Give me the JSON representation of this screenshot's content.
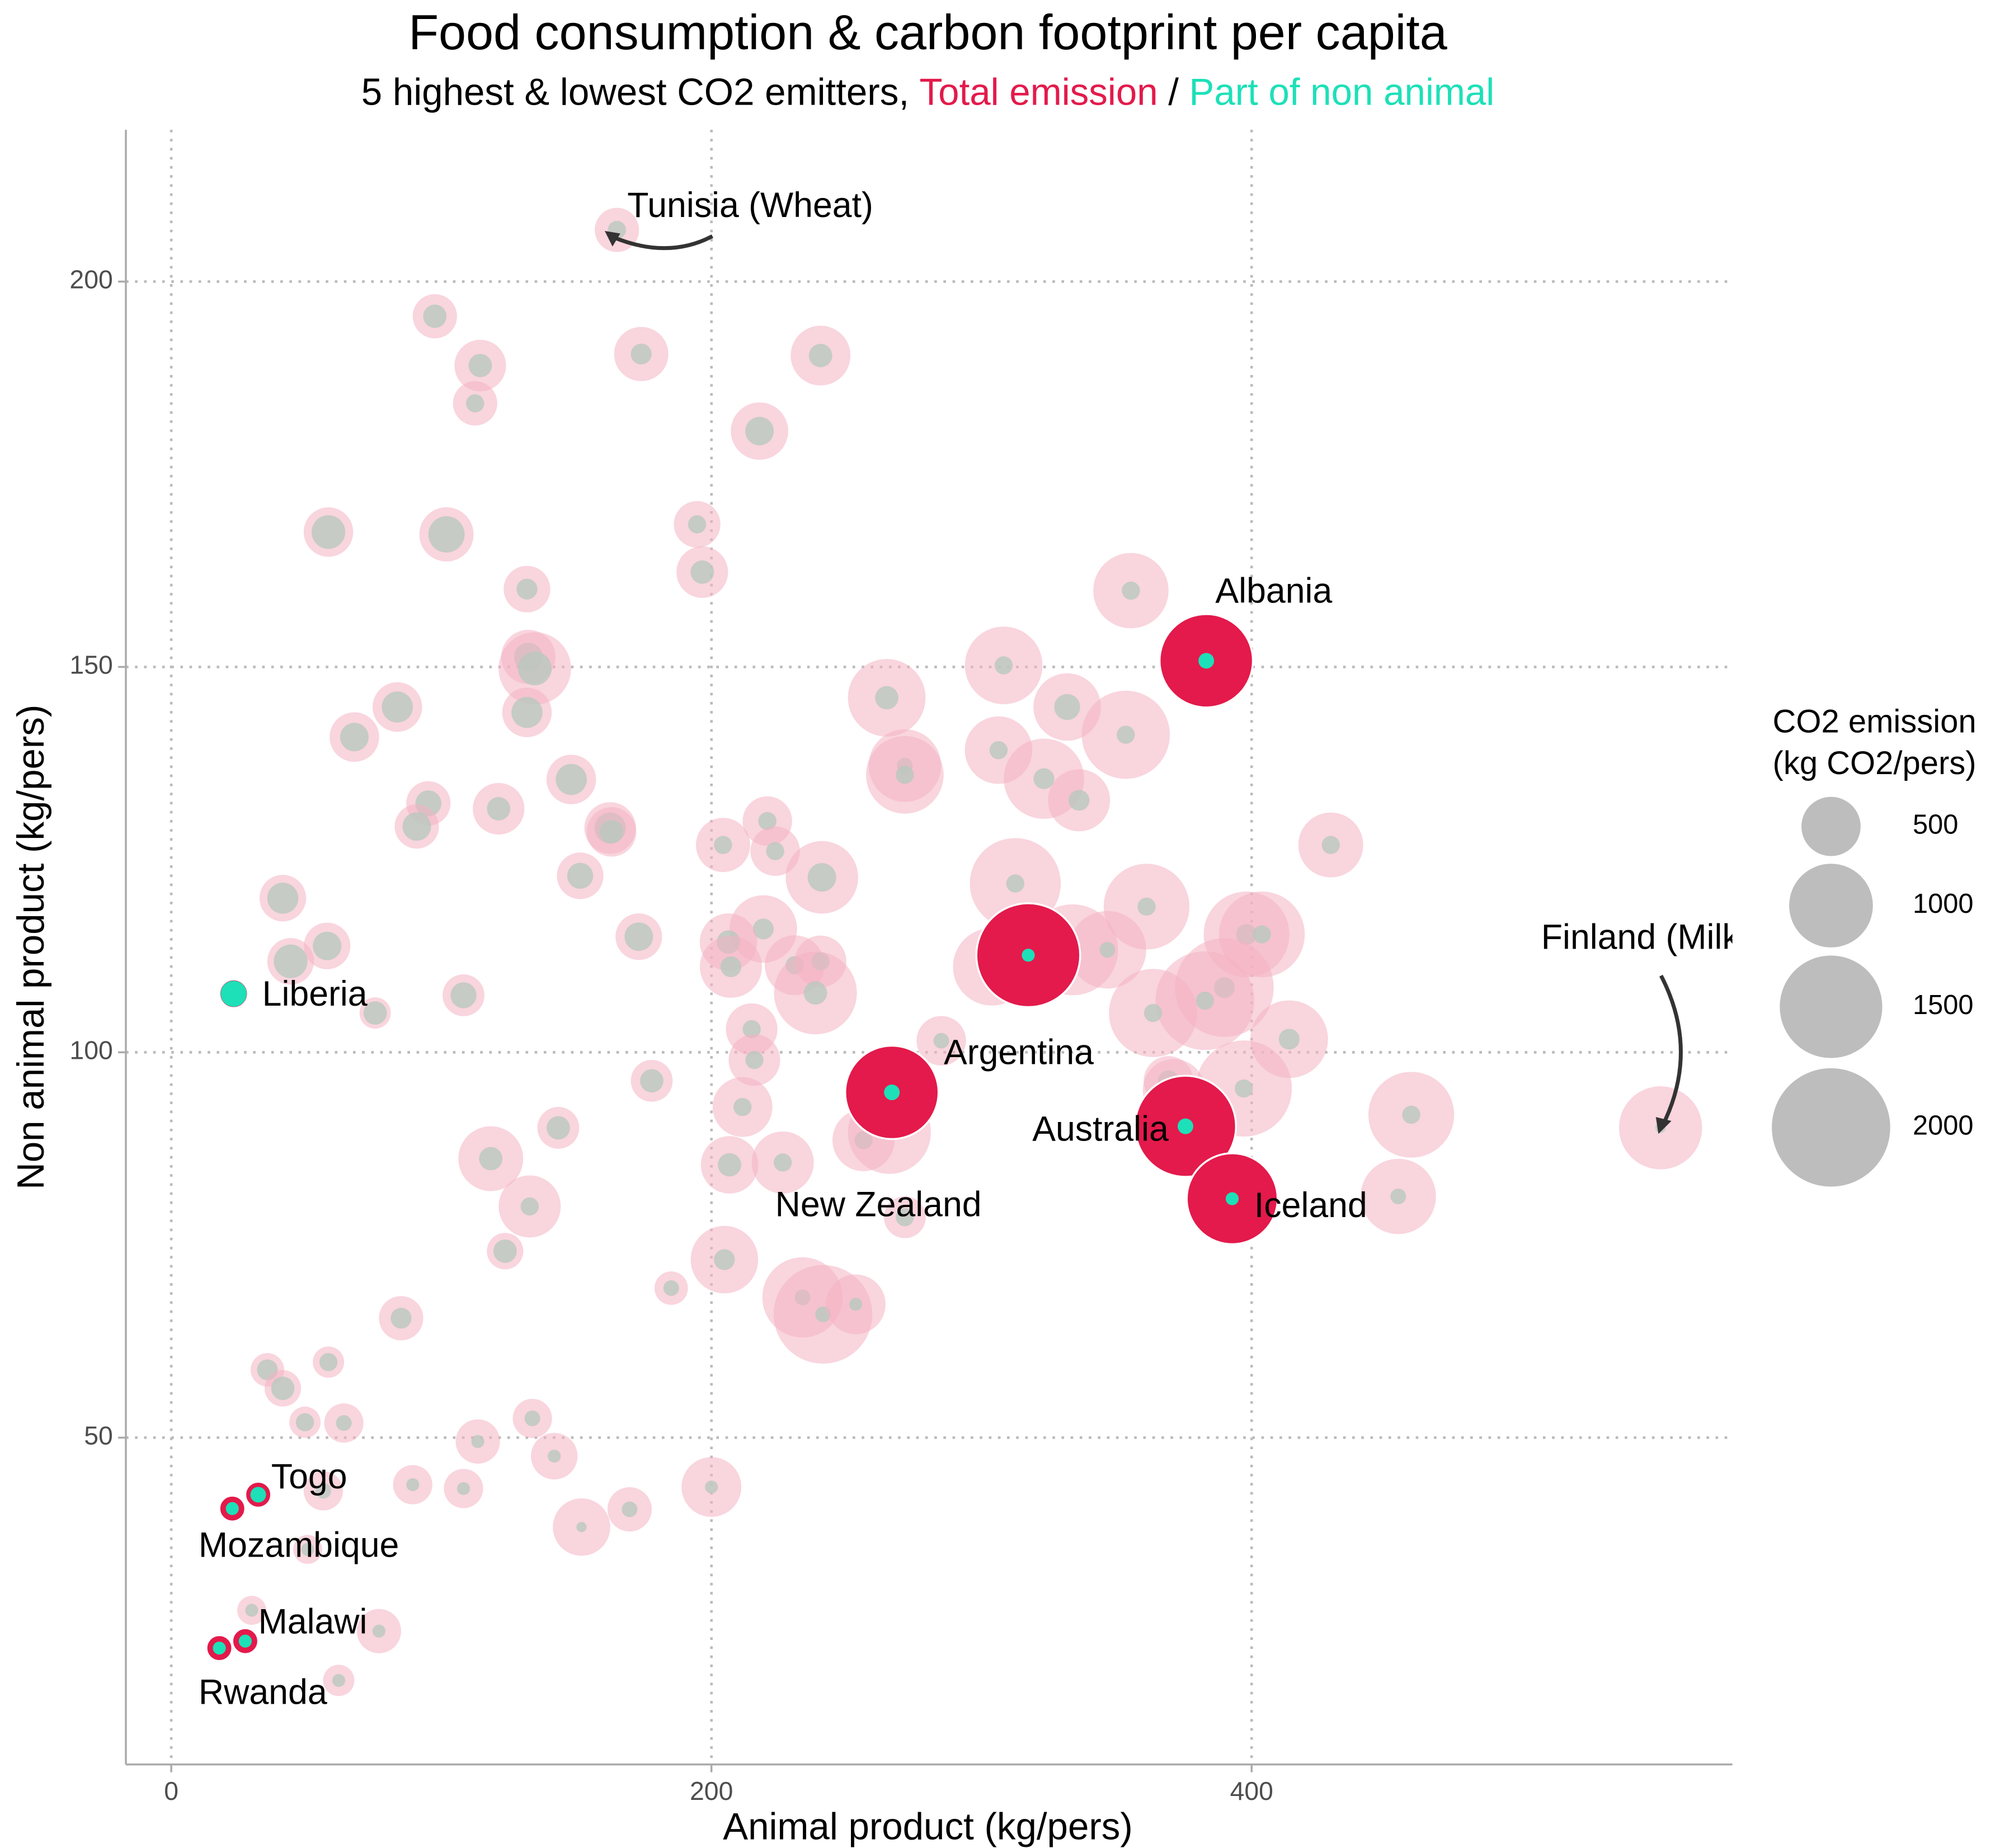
{
  "chart_data": {
    "type": "bubble",
    "title": "Food consumption & carbon footprint per capita",
    "subtitle": [
      "5 highest & lowest CO2 emitters,",
      "Total emission",
      "/",
      "Part of non animal"
    ],
    "x_label": "Animal product (kg/pers)",
    "y_label": "Non animal product (kg/pers)",
    "xlim": [
      -16.8,
      578
    ],
    "ylim": [
      7.6,
      219.7
    ],
    "xticks": [
      0,
      200,
      400
    ],
    "yticks": [
      50,
      100,
      150,
      200
    ],
    "grid": true,
    "colors": {
      "total": "#e31a4b",
      "non_animal": "#1de0b8",
      "others_total": "#f4b3c2",
      "others_non_animal": "#b9c8bf",
      "legend": "#bdbdbd"
    },
    "highlighted": {
      "labels": [
        "Albania",
        "Argentina",
        "New Zealand",
        "Australia",
        "Iceland",
        "Liberia",
        "Togo",
        "Mozambique",
        "Malawi",
        "Rwanda"
      ],
      "x": [
        383.2,
        266.8,
        317.3,
        375.5,
        392.8,
        23.1,
        32.2,
        22.6,
        27.4,
        17.8
      ],
      "y": [
        150.8,
        94.8,
        112.6,
        90.4,
        81.0,
        107.6,
        42.6,
        40.8,
        23.6,
        22.7
      ],
      "total": [
        1245,
        1245,
        1540,
        1460,
        1180,
        116,
        96,
        96,
        96,
        96
      ],
      "non_animal": [
        35,
        35,
        24,
        35,
        24,
        96,
        35,
        24,
        24,
        24
      ]
    },
    "annotations": {
      "labels": [
        "Tunisia (Wheat)",
        "Finland (Milk)"
      ],
      "x": [
        165,
        551.4
      ],
      "y": [
        206.7,
        90.2
      ],
      "total": [
        280,
        985
      ],
      "non_animal": [
        47,
        15
      ]
    },
    "others": {
      "x": [
        97.6,
        114.4,
        112.5,
        174.0,
        240.4,
        217.8,
        194.7,
        196.6,
        58.2,
        101.9,
        131.7,
        355.3,
        132.2,
        134.6,
        131.7,
        83.7,
        67.8,
        308.2,
        264.9,
        331.7,
        353.4,
        306.3,
        271.6,
        271.6,
        323.1,
        95.2,
        90.9,
        121.2,
        148.1,
        162.5,
        163.0,
        220.7,
        204.3,
        223.6,
        240.9,
        151.4,
        336.1,
        429.3,
        41.3,
        57.7,
        44.2,
        312.5,
        361.1,
        219.2,
        206.3,
        173.1,
        398.1,
        333.7,
        346.6,
        303.8,
        230.8,
        207.2,
        240.4,
        238.5,
        403.8,
        389.9,
        382.7,
        413.9,
        363.5,
        397.1,
        369.2,
        371.2,
        373.1,
        214.9,
        215.9,
        285.1,
        108.2,
        75.5,
        177.9,
        143.3,
        211.5,
        206.7,
        226.4,
        256.3,
        265.9,
        118.3,
        132.7,
        123.6,
        204.8,
        185.1,
        271.6,
        233.7,
        241.3,
        253.4,
        459.1,
        454.3,
        85.1,
        35.6,
        41.3,
        58.2,
        63.9,
        49.5,
        133.7,
        113.5,
        141.8,
        89.4,
        108.2,
        200.0,
        169.7,
        151.9,
        56.3,
        50.5,
        29.8,
        76.9,
        62.0
      ],
      "y": [
        195.5,
        189.1,
        184.2,
        190.6,
        190.4,
        180.6,
        168.5,
        162.3,
        167.5,
        167.2,
        160.1,
        159.9,
        151.3,
        149.8,
        144.1,
        144.8,
        140.9,
        150.2,
        146.0,
        144.8,
        141.2,
        139.2,
        137.2,
        136.0,
        135.5,
        132.3,
        129.3,
        131.6,
        135.4,
        129.1,
        128.6,
        130.0,
        126.9,
        126.1,
        122.7,
        122.9,
        132.7,
        126.9,
        120.0,
        113.8,
        111.8,
        121.9,
        118.9,
        116.0,
        114.3,
        115.0,
        115.3,
        113.3,
        113.3,
        111.1,
        111.3,
        111.1,
        111.8,
        107.7,
        115.3,
        108.4,
        106.7,
        101.7,
        105.1,
        95.3,
        96.3,
        95.1,
        91.9,
        103.0,
        99.0,
        101.5,
        107.4,
        105.1,
        96.3,
        90.2,
        92.9,
        85.4,
        85.7,
        88.6,
        89.6,
        86.2,
        80.0,
        74.2,
        73.1,
        69.4,
        78.6,
        68.2,
        66.0,
        67.3,
        91.9,
        81.3,
        65.5,
        58.8,
        56.4,
        59.8,
        51.9,
        52.0,
        52.5,
        49.5,
        47.6,
        43.9,
        43.4,
        43.6,
        40.7,
        38.4,
        43.1,
        35.5,
        27.6,
        24.9,
        18.5
      ],
      "total": [
        280,
        380,
        280,
        420,
        510,
        470,
        310,
        380,
        350,
        420,
        310,
        810,
        420,
        750,
        350,
        350,
        350,
        860,
        860,
        650,
        1110,
        650,
        750,
        860,
        920,
        280,
        280,
        380,
        350,
        380,
        350,
        350,
        420,
        350,
        750,
        310,
        550,
        600,
        310,
        310,
        310,
        1180,
        1050,
        650,
        470,
        310,
        1050,
        1180,
        860,
        860,
        510,
        550,
        380,
        980,
        1050,
        1390,
        1390,
        860,
        1110,
        1320,
        350,
        550,
        750,
        380,
        380,
        350,
        250,
        140,
        250,
        250,
        510,
        470,
        550,
        550,
        980,
        600,
        550,
        190,
        650,
        160,
        250,
        920,
        1390,
        510,
        1050,
        810,
        280,
        160,
        190,
        140,
        220,
        140,
        220,
        280,
        310,
        220,
        220,
        510,
        280,
        470,
        220,
        120,
        120,
        280,
        140
      ],
      "non_animal": [
        78,
        78,
        47,
        62,
        78,
        116,
        47,
        78,
        162,
        188,
        62,
        47,
        116,
        162,
        138,
        138,
        116,
        47,
        78,
        96,
        47,
        47,
        35,
        47,
        62,
        96,
        116,
        78,
        138,
        138,
        78,
        47,
        47,
        47,
        116,
        96,
        62,
        47,
        138,
        116,
        162,
        47,
        47,
        62,
        78,
        116,
        62,
        47,
        35,
        47,
        47,
        62,
        47,
        78,
        47,
        62,
        47,
        62,
        47,
        47,
        62,
        47,
        35,
        47,
        47,
        35,
        96,
        78,
        78,
        78,
        47,
        78,
        47,
        47,
        35,
        78,
        47,
        78,
        62,
        35,
        47,
        35,
        35,
        24,
        47,
        35,
        62,
        62,
        78,
        47,
        35,
        47,
        35,
        24,
        24,
        24,
        24,
        24,
        35,
        15,
        35,
        24,
        24,
        24,
        24
      ]
    },
    "size_legend": {
      "title": [
        "CO2 emission",
        "(kg CO2/pers)"
      ],
      "values": [
        500,
        1000,
        1500,
        2000
      ]
    }
  }
}
